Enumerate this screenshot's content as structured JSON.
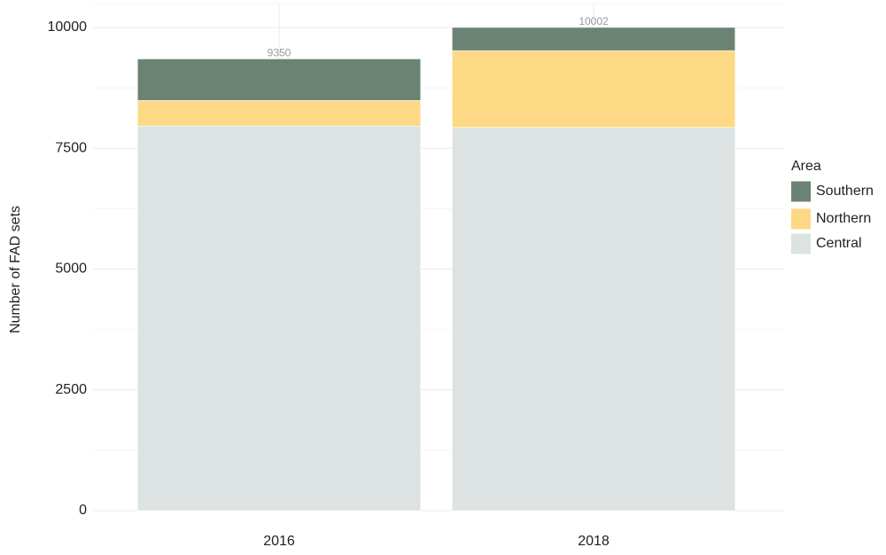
{
  "chart_data": {
    "type": "stacked_bar",
    "y_label": "Number of FAD sets",
    "categories": [
      "2016",
      "2018"
    ],
    "series": [
      {
        "name": "Central",
        "color": "#dce3e2",
        "values": [
          7960,
          7930
        ]
      },
      {
        "name": "Northern",
        "color": "#fdd985",
        "values": [
          530,
          1590
        ]
      },
      {
        "name": "Southern",
        "color": "#6b8374",
        "values": [
          860,
          482
        ]
      }
    ],
    "totals": [
      9350,
      10002
    ],
    "legend_title": "Area",
    "legend": "right",
    "ylim": [
      0,
      10000
    ],
    "yticks": [
      0,
      2500,
      5000,
      7500,
      10000
    ],
    "grid": true
  }
}
